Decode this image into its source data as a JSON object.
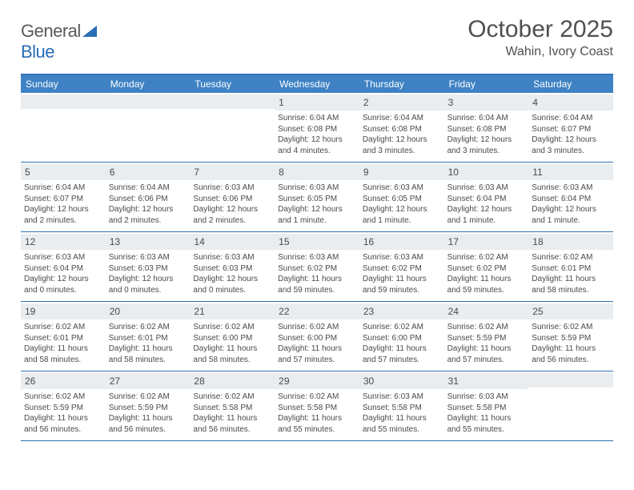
{
  "logo": {
    "text1": "General",
    "text2": "Blue"
  },
  "title": "October 2025",
  "location": "Wahin, Ivory Coast",
  "styling": {
    "header_bg": "#3e82c4",
    "header_rule": "#3372b7",
    "row_rule": "#2f6fae",
    "day_bg": "#e9edf0",
    "page_bg": "#ffffff",
    "text_color": "#4a4a4a",
    "logo_blue": "#2a6db5",
    "weekday_text": "#ffffff",
    "month_title_fontsize": 30,
    "location_fontsize": 16,
    "weekday_fontsize": 12,
    "cell_fontsize": 10
  },
  "weekdays": [
    "Sunday",
    "Monday",
    "Tuesday",
    "Wednesday",
    "Thursday",
    "Friday",
    "Saturday"
  ],
  "weeks": [
    [
      null,
      null,
      null,
      {
        "n": "1",
        "sr": "6:04 AM",
        "ss": "6:08 PM",
        "dl": "12 hours and 4 minutes."
      },
      {
        "n": "2",
        "sr": "6:04 AM",
        "ss": "6:08 PM",
        "dl": "12 hours and 3 minutes."
      },
      {
        "n": "3",
        "sr": "6:04 AM",
        "ss": "6:08 PM",
        "dl": "12 hours and 3 minutes."
      },
      {
        "n": "4",
        "sr": "6:04 AM",
        "ss": "6:07 PM",
        "dl": "12 hours and 3 minutes."
      }
    ],
    [
      {
        "n": "5",
        "sr": "6:04 AM",
        "ss": "6:07 PM",
        "dl": "12 hours and 2 minutes."
      },
      {
        "n": "6",
        "sr": "6:04 AM",
        "ss": "6:06 PM",
        "dl": "12 hours and 2 minutes."
      },
      {
        "n": "7",
        "sr": "6:03 AM",
        "ss": "6:06 PM",
        "dl": "12 hours and 2 minutes."
      },
      {
        "n": "8",
        "sr": "6:03 AM",
        "ss": "6:05 PM",
        "dl": "12 hours and 1 minute."
      },
      {
        "n": "9",
        "sr": "6:03 AM",
        "ss": "6:05 PM",
        "dl": "12 hours and 1 minute."
      },
      {
        "n": "10",
        "sr": "6:03 AM",
        "ss": "6:04 PM",
        "dl": "12 hours and 1 minute."
      },
      {
        "n": "11",
        "sr": "6:03 AM",
        "ss": "6:04 PM",
        "dl": "12 hours and 1 minute."
      }
    ],
    [
      {
        "n": "12",
        "sr": "6:03 AM",
        "ss": "6:04 PM",
        "dl": "12 hours and 0 minutes."
      },
      {
        "n": "13",
        "sr": "6:03 AM",
        "ss": "6:03 PM",
        "dl": "12 hours and 0 minutes."
      },
      {
        "n": "14",
        "sr": "6:03 AM",
        "ss": "6:03 PM",
        "dl": "12 hours and 0 minutes."
      },
      {
        "n": "15",
        "sr": "6:03 AM",
        "ss": "6:02 PM",
        "dl": "11 hours and 59 minutes."
      },
      {
        "n": "16",
        "sr": "6:03 AM",
        "ss": "6:02 PM",
        "dl": "11 hours and 59 minutes."
      },
      {
        "n": "17",
        "sr": "6:02 AM",
        "ss": "6:02 PM",
        "dl": "11 hours and 59 minutes."
      },
      {
        "n": "18",
        "sr": "6:02 AM",
        "ss": "6:01 PM",
        "dl": "11 hours and 58 minutes."
      }
    ],
    [
      {
        "n": "19",
        "sr": "6:02 AM",
        "ss": "6:01 PM",
        "dl": "11 hours and 58 minutes."
      },
      {
        "n": "20",
        "sr": "6:02 AM",
        "ss": "6:01 PM",
        "dl": "11 hours and 58 minutes."
      },
      {
        "n": "21",
        "sr": "6:02 AM",
        "ss": "6:00 PM",
        "dl": "11 hours and 58 minutes."
      },
      {
        "n": "22",
        "sr": "6:02 AM",
        "ss": "6:00 PM",
        "dl": "11 hours and 57 minutes."
      },
      {
        "n": "23",
        "sr": "6:02 AM",
        "ss": "6:00 PM",
        "dl": "11 hours and 57 minutes."
      },
      {
        "n": "24",
        "sr": "6:02 AM",
        "ss": "5:59 PM",
        "dl": "11 hours and 57 minutes."
      },
      {
        "n": "25",
        "sr": "6:02 AM",
        "ss": "5:59 PM",
        "dl": "11 hours and 56 minutes."
      }
    ],
    [
      {
        "n": "26",
        "sr": "6:02 AM",
        "ss": "5:59 PM",
        "dl": "11 hours and 56 minutes."
      },
      {
        "n": "27",
        "sr": "6:02 AM",
        "ss": "5:59 PM",
        "dl": "11 hours and 56 minutes."
      },
      {
        "n": "28",
        "sr": "6:02 AM",
        "ss": "5:58 PM",
        "dl": "11 hours and 56 minutes."
      },
      {
        "n": "29",
        "sr": "6:02 AM",
        "ss": "5:58 PM",
        "dl": "11 hours and 55 minutes."
      },
      {
        "n": "30",
        "sr": "6:03 AM",
        "ss": "5:58 PM",
        "dl": "11 hours and 55 minutes."
      },
      {
        "n": "31",
        "sr": "6:03 AM",
        "ss": "5:58 PM",
        "dl": "11 hours and 55 minutes."
      },
      null
    ]
  ],
  "labels": {
    "sunrise": "Sunrise:",
    "sunset": "Sunset:",
    "daylight": "Daylight:"
  }
}
